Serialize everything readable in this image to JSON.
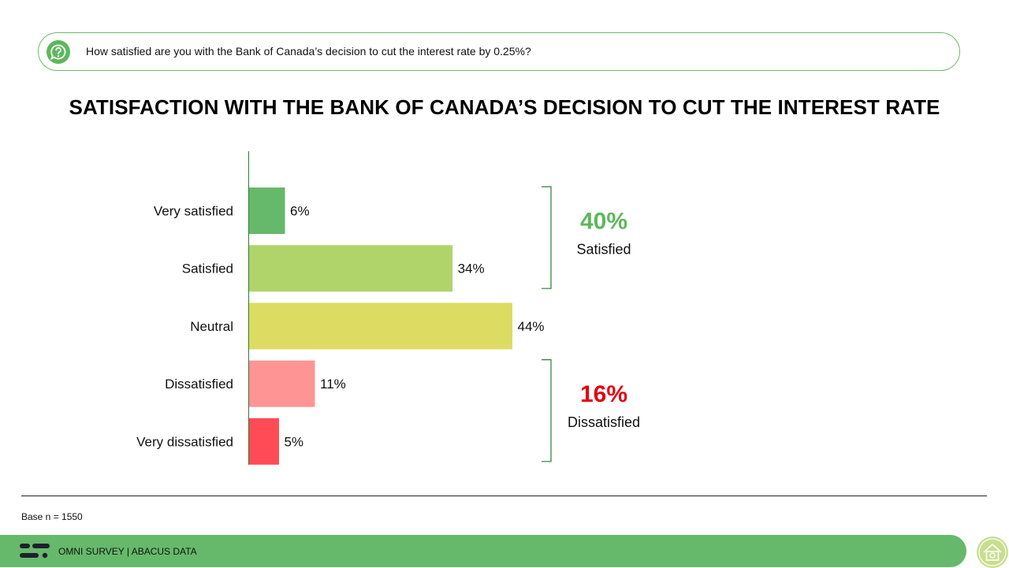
{
  "question": {
    "icon": "question-bubble-icon",
    "text": "How satisfied are you with the Bank of Canada’s decision to cut the interest rate by 0.25%?"
  },
  "title": "SATISFACTION WITH THE BANK OF CANADA’S DECISION TO CUT THE INTEREST RATE",
  "chart_data": {
    "type": "bar",
    "orientation": "horizontal",
    "categories": [
      "Very satisfied",
      "Satisfied",
      "Neutral",
      "Dissatisfied",
      "Very dissatisfied"
    ],
    "values": [
      6,
      34,
      44,
      11,
      5
    ],
    "value_labels": [
      "6%",
      "34%",
      "44%",
      "11%",
      "5%"
    ],
    "colors": [
      "#66b96a",
      "#b0d46a",
      "#dcdc63",
      "#ff9494",
      "#ff4b55"
    ],
    "xlim": [
      0,
      100
    ],
    "grid": false,
    "summaries": [
      {
        "pct": "40%",
        "label": "Satisfied",
        "color": "#5cb85c",
        "spans": [
          0,
          1
        ]
      },
      {
        "pct": "16%",
        "label": "Dissatisfied",
        "color": "#e3000f",
        "spans": [
          3,
          4
        ]
      }
    ]
  },
  "base_note": "Base n = 1550",
  "footer": {
    "logo_icon": "abacus-logo-icon",
    "text": "OMNI SURVEY  |  ABACUS DATA",
    "badge_icon": "house-badge-icon"
  }
}
